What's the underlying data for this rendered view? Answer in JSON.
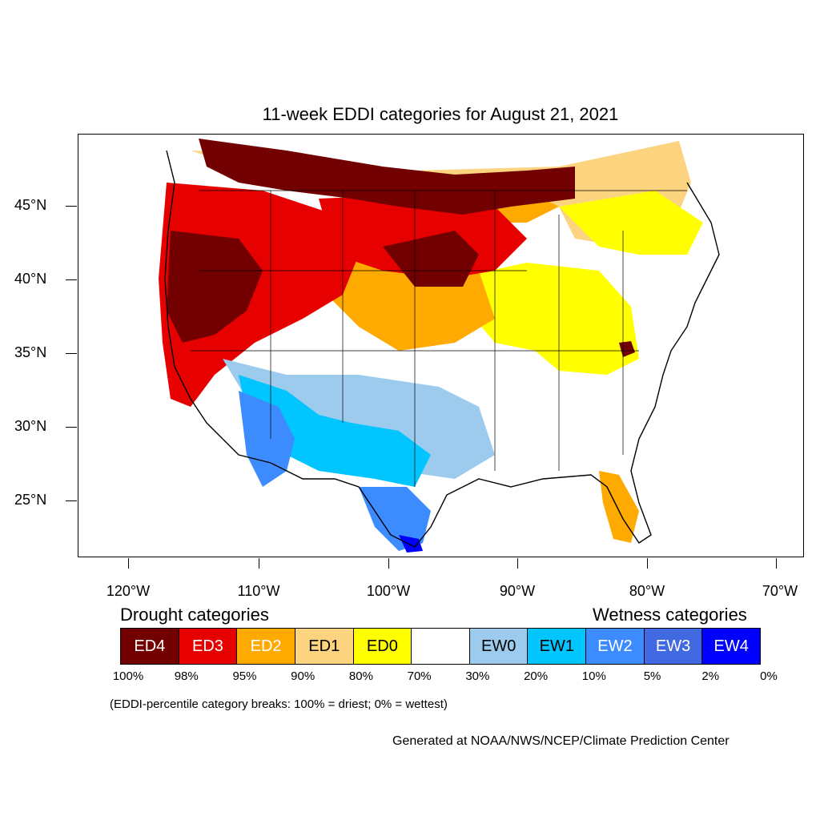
{
  "title": "11-week EDDI categories for August 21, 2021",
  "y_axis_labels": [
    "45°N",
    "40°N",
    "35°N",
    "30°N",
    "25°N"
  ],
  "x_axis_labels": [
    "120°W",
    "110°W",
    "100°W",
    "90°W",
    "80°W",
    "70°W"
  ],
  "drought_heading": "Drought categories",
  "wetness_heading": "Wetness categories",
  "legend": [
    {
      "label": "ED4",
      "color": "#730000",
      "text_color": "#ffffff"
    },
    {
      "label": "ED3",
      "color": "#e60000",
      "text_color": "#ffffff"
    },
    {
      "label": "ED2",
      "color": "#ffaa00",
      "text_color": "#ffffff"
    },
    {
      "label": "ED1",
      "color": "#fcd37f",
      "text_color": "#000000"
    },
    {
      "label": "ED0",
      "color": "#ffff00",
      "text_color": "#000000"
    },
    {
      "label": "",
      "color": "#ffffff",
      "text_color": "#000000"
    },
    {
      "label": "EW0",
      "color": "#9ccbee",
      "text_color": "#000000"
    },
    {
      "label": "EW1",
      "color": "#00c5ff",
      "text_color": "#000000"
    },
    {
      "label": "EW2",
      "color": "#3c8cff",
      "text_color": "#ffffff"
    },
    {
      "label": "EW3",
      "color": "#4169e1",
      "text_color": "#ffffff"
    },
    {
      "label": "EW4",
      "color": "#0000ff",
      "text_color": "#ffffff"
    }
  ],
  "percent_breaks": [
    "100%",
    "98%",
    "95%",
    "90%",
    "80%",
    "70%",
    "30%",
    "20%",
    "10%",
    "5%",
    "2%",
    "0%"
  ],
  "note": "(EDDI-percentile category breaks: 100% = driest; 0% = wettest)",
  "credit": "Generated at NOAA/NWS/NCEP/Climate Prediction Center"
}
